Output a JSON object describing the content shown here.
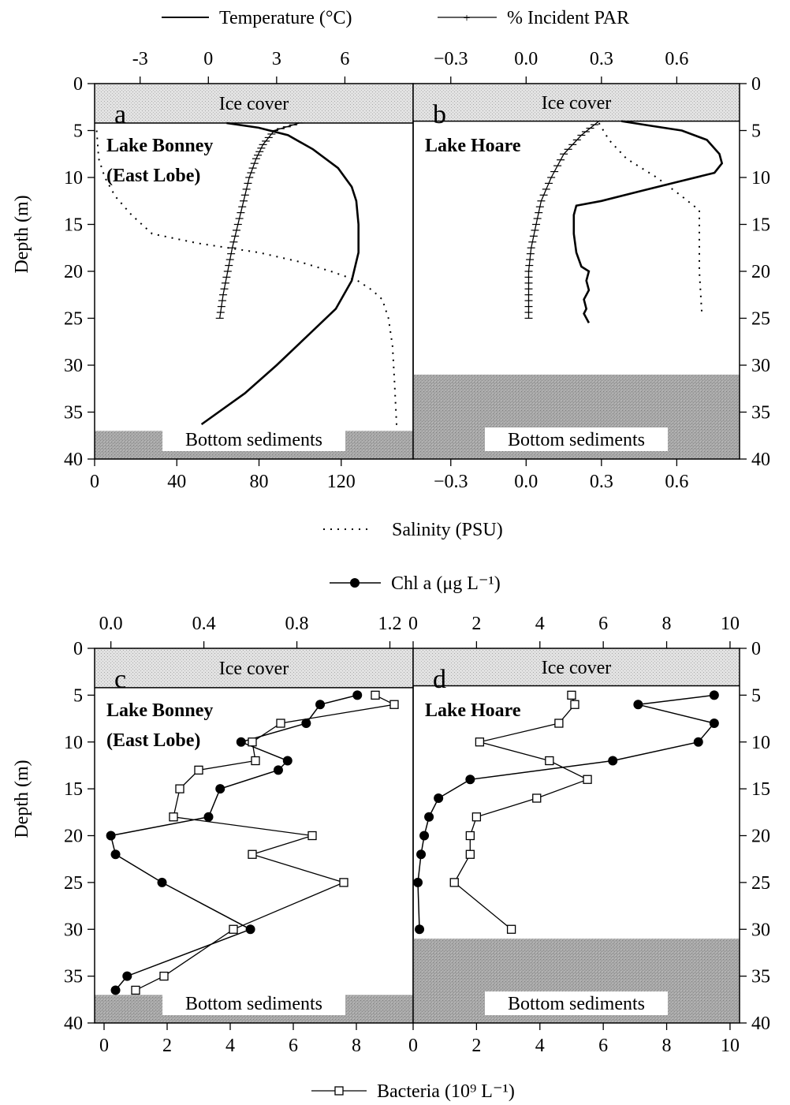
{
  "figure": {
    "legend_top": {
      "temperature": "Temperature (°C)",
      "par": "% Incident PAR"
    },
    "legend_mid": {
      "chl": "Chl a (μg L⁻¹)"
    },
    "legend_bottom": {
      "bacteria": "Bacteria (10⁹ L⁻¹)"
    },
    "salinity_label": "Salinity (PSU)",
    "depth_label": "Depth (m)"
  },
  "panels": {
    "a": {
      "letter": "a",
      "title1": "Lake Bonney",
      "title2": "(East Lobe)",
      "ice": "Ice cover",
      "sediment": "Bottom sediments"
    },
    "b": {
      "letter": "b",
      "title1": "Lake Hoare",
      "title2": "",
      "ice": "Ice cover",
      "sediment": "Bottom sediments"
    },
    "c": {
      "letter": "c",
      "title1": "Lake Bonney",
      "title2": "(East Lobe)",
      "ice": "Ice cover",
      "sediment": "Bottom sediments"
    },
    "d": {
      "letter": "d",
      "title1": "Lake Hoare",
      "title2": "",
      "ice": "Ice cover",
      "sediment": "Bottom sediments"
    }
  },
  "chart_data": [
    {
      "panel": "a",
      "type": "line",
      "title": "Lake Bonney (East Lobe)",
      "ylabel": "Depth (m)",
      "ylim": [
        40,
        0
      ],
      "yticks": [
        0,
        5,
        10,
        15,
        20,
        25,
        30,
        35,
        40
      ],
      "ice_depth": 4.2,
      "bottom_depth": 37,
      "top_axis": {
        "label": "Temperature (°C)",
        "range": [
          -5,
          9
        ],
        "ticks": [
          -3,
          0,
          3,
          6
        ]
      },
      "bottom_axis": {
        "label": "Salinity (PSU)",
        "range": [
          0,
          155
        ],
        "ticks": [
          0,
          40,
          80,
          120
        ]
      },
      "series": [
        {
          "name": "Temperature",
          "axis": "top",
          "style": "solid",
          "points": [
            [
              0.8,
              4.2
            ],
            [
              2.2,
              4.7
            ],
            [
              3.5,
              5.5
            ],
            [
              4.6,
              7.0
            ],
            [
              5.7,
              9.0
            ],
            [
              6.3,
              11.0
            ],
            [
              6.5,
              12.5
            ],
            [
              6.6,
              15.0
            ],
            [
              6.6,
              18.0
            ],
            [
              6.3,
              21.0
            ],
            [
              5.6,
              24.0
            ],
            [
              4.3,
              27.0
            ],
            [
              3.0,
              30.0
            ],
            [
              1.6,
              33.0
            ],
            [
              -0.3,
              36.3
            ]
          ]
        },
        {
          "name": "% Incident PAR",
          "axis": "top",
          "style": "marked",
          "points": [
            [
              4.0,
              4.2
            ],
            [
              2.9,
              5.0
            ],
            [
              2.4,
              6.5
            ],
            [
              2.1,
              8.0
            ],
            [
              1.8,
              10.0
            ],
            [
              1.55,
              12.5
            ],
            [
              1.3,
              15.0
            ],
            [
              1.05,
              17.5
            ],
            [
              0.85,
              20.0
            ],
            [
              0.65,
              22.5
            ],
            [
              0.5,
              25.0
            ]
          ]
        },
        {
          "name": "Salinity",
          "axis": "bottom",
          "style": "dotted",
          "points": [
            [
              1,
              5
            ],
            [
              2,
              8
            ],
            [
              5,
              10
            ],
            [
              10,
              12
            ],
            [
              18,
              14
            ],
            [
              28,
              16
            ],
            [
              50,
              17
            ],
            [
              80,
              18
            ],
            [
              100,
              19
            ],
            [
              115,
              20
            ],
            [
              128,
              21
            ],
            [
              135,
              22
            ],
            [
              140,
              23
            ],
            [
              143,
              25
            ],
            [
              145,
              28
            ],
            [
              146,
              32
            ],
            [
              147,
              36.5
            ]
          ]
        }
      ]
    },
    {
      "panel": "b",
      "type": "line",
      "title": "Lake Hoare",
      "ylabel": "Depth (m)",
      "ylim": [
        40,
        0
      ],
      "yticks": [
        0,
        5,
        10,
        15,
        20,
        25,
        30,
        35,
        40
      ],
      "ice_depth": 4.0,
      "bottom_depth": 31,
      "top_axis": {
        "label": "",
        "range": [
          -0.45,
          0.85
        ],
        "ticks": [
          -0.3,
          0.0,
          0.3,
          0.6
        ]
      },
      "bottom_axis": {
        "label": "",
        "range": [
          -0.45,
          0.85
        ],
        "ticks": [
          -0.3,
          0.0,
          0.3,
          0.6
        ]
      },
      "series": [
        {
          "name": "Temperature",
          "axis": "top",
          "style": "solid",
          "points": [
            [
              0.38,
              4.0
            ],
            [
              0.5,
              4.5
            ],
            [
              0.62,
              5.0
            ],
            [
              0.72,
              6.0
            ],
            [
              0.77,
              7.5
            ],
            [
              0.78,
              8.5
            ],
            [
              0.75,
              9.5
            ],
            [
              0.6,
              10.5
            ],
            [
              0.45,
              11.5
            ],
            [
              0.3,
              12.5
            ],
            [
              0.2,
              13.0
            ],
            [
              0.19,
              14.0
            ],
            [
              0.19,
              16.0
            ],
            [
              0.2,
              18.0
            ],
            [
              0.22,
              19.5
            ],
            [
              0.25,
              20.0
            ],
            [
              0.24,
              21.0
            ],
            [
              0.25,
              22.0
            ],
            [
              0.23,
              23.0
            ],
            [
              0.24,
              24.0
            ],
            [
              0.23,
              24.5
            ],
            [
              0.25,
              25.5
            ]
          ]
        },
        {
          "name": "% Incident PAR",
          "axis": "top",
          "style": "marked",
          "points": [
            [
              0.29,
              4.0
            ],
            [
              0.22,
              5.5
            ],
            [
              0.15,
              7.5
            ],
            [
              0.1,
              10.0
            ],
            [
              0.06,
              12.5
            ],
            [
              0.04,
              15.0
            ],
            [
              0.02,
              17.5
            ],
            [
              0.01,
              20.0
            ],
            [
              0.01,
              22.5
            ],
            [
              0.01,
              25.0
            ]
          ]
        },
        {
          "name": "Salinity",
          "axis": "bottom",
          "style": "dotted",
          "points": [
            [
              0.29,
              4.2
            ],
            [
              0.33,
              6.0
            ],
            [
              0.4,
              8.0
            ],
            [
              0.52,
              10.0
            ],
            [
              0.62,
              12.0
            ],
            [
              0.69,
              13.5
            ],
            [
              0.69,
              15.0
            ],
            [
              0.69,
              20.0
            ],
            [
              0.7,
              24.5
            ]
          ]
        }
      ]
    },
    {
      "panel": "c",
      "type": "line",
      "title": "Lake Bonney (East Lobe)",
      "ylabel": "Depth (m)",
      "ylim": [
        40,
        0
      ],
      "yticks": [
        0,
        5,
        10,
        15,
        20,
        25,
        30,
        35,
        40
      ],
      "ice_depth": 4.2,
      "bottom_depth": 37,
      "top_axis": {
        "label": "Chl a (μg L⁻¹)",
        "range": [
          -0.07,
          1.3
        ],
        "ticks": [
          0.0,
          0.4,
          0.8,
          1.2
        ]
      },
      "bottom_axis": {
        "label": "Bacteria (10⁹ L⁻¹)",
        "range": [
          -0.3,
          9.8
        ],
        "ticks": [
          0,
          2,
          4,
          6,
          8
        ]
      },
      "series": [
        {
          "name": "Chl a",
          "axis": "top",
          "style": "filled-circle",
          "points": [
            [
              1.06,
              5.0
            ],
            [
              0.9,
              6.0
            ],
            [
              0.84,
              8.0
            ],
            [
              0.56,
              10.0
            ],
            [
              0.76,
              12.0
            ],
            [
              0.72,
              13.0
            ],
            [
              0.47,
              15.0
            ],
            [
              0.42,
              18.0
            ],
            [
              0.0,
              20.0
            ],
            [
              0.02,
              22.0
            ],
            [
              0.22,
              25.0
            ],
            [
              0.6,
              30.0
            ],
            [
              0.07,
              35.0
            ],
            [
              0.02,
              36.5
            ]
          ]
        },
        {
          "name": "Bacteria",
          "axis": "bottom",
          "style": "open-square",
          "points": [
            [
              8.6,
              5.0
            ],
            [
              9.2,
              6.0
            ],
            [
              5.6,
              8.0
            ],
            [
              4.7,
              10.0
            ],
            [
              4.8,
              12.0
            ],
            [
              3.0,
              13.0
            ],
            [
              2.4,
              15.0
            ],
            [
              2.2,
              18.0
            ],
            [
              6.6,
              20.0
            ],
            [
              4.7,
              22.0
            ],
            [
              7.6,
              25.0
            ],
            [
              4.1,
              30.0
            ],
            [
              1.9,
              35.0
            ],
            [
              1.0,
              36.5
            ]
          ]
        }
      ]
    },
    {
      "panel": "d",
      "type": "line",
      "title": "Lake Hoare",
      "ylabel": "Depth (m)",
      "ylim": [
        40,
        0
      ],
      "yticks": [
        0,
        5,
        10,
        15,
        20,
        25,
        30,
        35,
        40
      ],
      "ice_depth": 4.0,
      "bottom_depth": 31,
      "top_axis": {
        "label": "",
        "range": [
          0,
          10.3
        ],
        "ticks": [
          0,
          2,
          4,
          6,
          8,
          10
        ]
      },
      "bottom_axis": {
        "label": "",
        "range": [
          0,
          10.3
        ],
        "ticks": [
          0,
          2,
          4,
          6,
          8,
          10
        ]
      },
      "series": [
        {
          "name": "Chl a",
          "axis": "top",
          "style": "filled-circle",
          "points": [
            [
              9.5,
              5.0
            ],
            [
              7.1,
              6.0
            ],
            [
              9.5,
              8.0
            ],
            [
              9.0,
              10.0
            ],
            [
              6.3,
              12.0
            ],
            [
              1.8,
              14.0
            ],
            [
              0.8,
              16.0
            ],
            [
              0.5,
              18.0
            ],
            [
              0.35,
              20.0
            ],
            [
              0.25,
              22.0
            ],
            [
              0.15,
              25.0
            ],
            [
              0.2,
              30.0
            ]
          ]
        },
        {
          "name": "Bacteria",
          "axis": "bottom",
          "style": "open-square",
          "points": [
            [
              5.0,
              5.0
            ],
            [
              5.1,
              6.0
            ],
            [
              4.6,
              8.0
            ],
            [
              2.1,
              10.0
            ],
            [
              4.3,
              12.0
            ],
            [
              5.5,
              14.0
            ],
            [
              3.9,
              16.0
            ],
            [
              2.0,
              18.0
            ],
            [
              1.8,
              20.0
            ],
            [
              1.8,
              22.0
            ],
            [
              1.3,
              25.0
            ],
            [
              3.1,
              30.0
            ]
          ]
        }
      ]
    }
  ]
}
